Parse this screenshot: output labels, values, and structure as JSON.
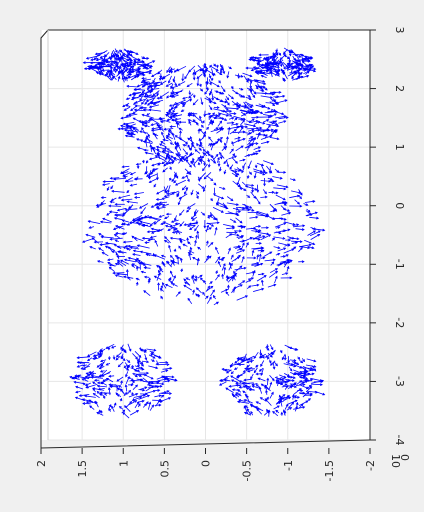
{
  "chart_data": {
    "type": "quiver3",
    "title": "",
    "view": "3-D vector field of a teddy-bear shaped surface (front view)",
    "series_color": "#0000ff",
    "grid": true,
    "axes": {
      "vertical": {
        "ticks": [
          {
            "value": 3,
            "label": "3"
          },
          {
            "value": 2,
            "label": "2"
          },
          {
            "value": 1,
            "label": "1"
          },
          {
            "value": 0,
            "label": "0"
          },
          {
            "value": -1,
            "label": "-1"
          },
          {
            "value": -2,
            "label": "-2"
          },
          {
            "value": -3,
            "label": "-3"
          },
          {
            "value": -4,
            "label": "-4"
          }
        ],
        "range": [
          -4,
          3
        ]
      },
      "horizontal": {
        "ticks": [
          {
            "value": 2,
            "label": "2"
          },
          {
            "value": 1.5,
            "label": "1.5"
          },
          {
            "value": 1,
            "label": "1"
          },
          {
            "value": 0.5,
            "label": "0.5"
          },
          {
            "value": 0,
            "label": "0"
          },
          {
            "value": -0.5,
            "label": "-0.5"
          },
          {
            "value": -1,
            "label": "-1"
          },
          {
            "value": -1.5,
            "label": "-1.5"
          },
          {
            "value": -2,
            "label": "-2"
          }
        ],
        "range": [
          -2,
          2
        ]
      },
      "depth": {
        "ticks": [
          {
            "value": 10,
            "label": "10"
          },
          {
            "value": 0,
            "label": "0"
          }
        ]
      }
    },
    "regions": [
      {
        "name": "left-ear",
        "cx": 1.05,
        "cy": 2.4,
        "rx": 0.32,
        "ry": 0.3,
        "count": 160
      },
      {
        "name": "right-ear",
        "cx": -0.95,
        "cy": 2.4,
        "rx": 0.32,
        "ry": 0.3,
        "count": 160
      },
      {
        "name": "head",
        "cx": 0.05,
        "cy": 1.55,
        "rx": 0.95,
        "ry": 0.9,
        "count": 520
      },
      {
        "name": "body",
        "cx": 0.05,
        "cy": -0.35,
        "rx": 1.35,
        "ry": 1.35,
        "count": 620
      },
      {
        "name": "left-leg",
        "cx": 1.0,
        "cy": -3.0,
        "rx": 0.55,
        "ry": 0.65,
        "count": 220
      },
      {
        "name": "right-leg",
        "cx": -0.8,
        "cy": -3.0,
        "rx": 0.55,
        "ry": 0.65,
        "count": 220
      }
    ]
  }
}
